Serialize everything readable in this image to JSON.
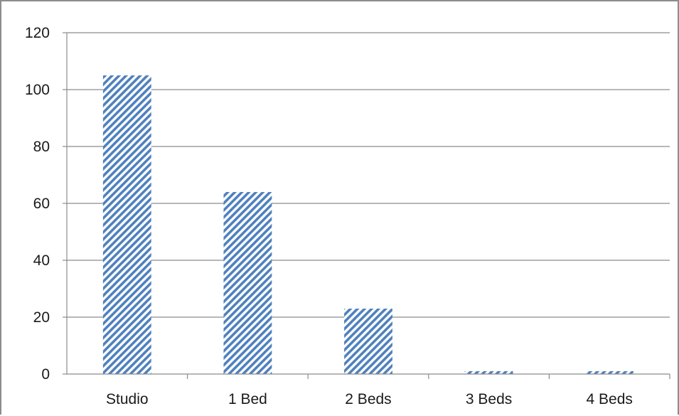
{
  "chart_data": {
    "type": "bar",
    "title": "",
    "xlabel": "",
    "ylabel": "",
    "categories": [
      "Studio",
      "1 Bed",
      "2 Beds",
      "3 Beds",
      "4 Beds"
    ],
    "values": [
      105,
      64,
      23,
      1,
      1
    ],
    "ylim": [
      0,
      120
    ],
    "yticks": [
      "0",
      "20",
      "40",
      "60",
      "80",
      "100",
      "120"
    ],
    "grid": true,
    "legend": "none",
    "bar_color": "#4f81bd",
    "bar_fill": "diagonal-hatch"
  }
}
